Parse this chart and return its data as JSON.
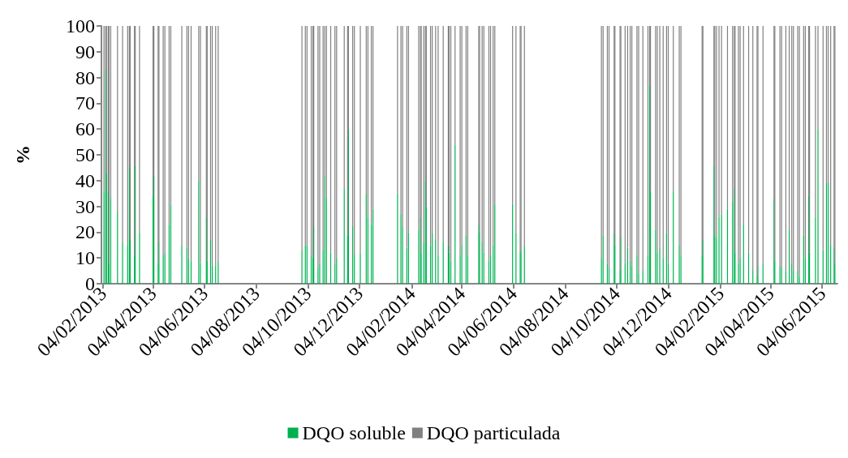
{
  "chart_data": {
    "type": "bar",
    "ylabel": "%",
    "stacked": true,
    "legend": "bottom",
    "grid": false,
    "xlim": [
      "2013-02-02",
      "2015-06-22"
    ],
    "ylim": [
      0,
      100
    ],
    "yticks": [
      0,
      10,
      20,
      30,
      40,
      50,
      60,
      70,
      80,
      90,
      100
    ],
    "xticks": [
      {
        "value": "2013-02-04",
        "label": "04/02/2013"
      },
      {
        "value": "2013-04-04",
        "label": "04/04/2013"
      },
      {
        "value": "2013-06-04",
        "label": "04/06/2013"
      },
      {
        "value": "2013-08-04",
        "label": "04/08/2013"
      },
      {
        "value": "2013-10-04",
        "label": "04/10/2013"
      },
      {
        "value": "2013-12-04",
        "label": "04/12/2013"
      },
      {
        "value": "2014-02-04",
        "label": "04/02/2014"
      },
      {
        "value": "2014-04-04",
        "label": "04/04/2014"
      },
      {
        "value": "2014-06-04",
        "label": "04/06/2014"
      },
      {
        "value": "2014-08-04",
        "label": "04/08/2014"
      },
      {
        "value": "2014-10-04",
        "label": "04/10/2014"
      },
      {
        "value": "2014-12-04",
        "label": "04/12/2014"
      },
      {
        "value": "2015-02-04",
        "label": "04/02/2015"
      },
      {
        "value": "2015-04-04",
        "label": "04/04/2015"
      },
      {
        "value": "2015-06-04",
        "label": "04/06/2015"
      }
    ],
    "x": [
      "2013-02-05",
      "2013-02-07",
      "2013-02-08",
      "2013-02-10",
      "2013-02-11",
      "2013-02-13",
      "2013-02-21",
      "2013-02-27",
      "2013-03-05",
      "2013-03-07",
      "2013-03-08",
      "2013-03-13",
      "2013-03-14",
      "2013-03-19",
      "2013-04-04",
      "2013-04-05",
      "2013-04-10",
      "2013-04-11",
      "2013-04-16",
      "2013-04-18",
      "2013-04-23",
      "2013-04-25",
      "2013-05-08",
      "2013-05-14",
      "2013-05-16",
      "2013-05-19",
      "2013-05-28",
      "2013-05-30",
      "2013-06-06",
      "2013-06-07",
      "2013-06-11",
      "2013-06-13",
      "2013-06-17",
      "2013-06-20",
      "2013-09-27",
      "2013-10-01",
      "2013-10-03",
      "2013-10-08",
      "2013-10-10",
      "2013-10-11",
      "2013-10-16",
      "2013-10-18",
      "2013-10-22",
      "2013-10-24",
      "2013-10-26",
      "2013-10-31",
      "2013-11-05",
      "2013-11-07",
      "2013-11-16",
      "2013-11-20",
      "2013-11-21",
      "2013-11-26",
      "2013-11-28",
      "2013-12-05",
      "2013-12-12",
      "2013-12-14",
      "2013-12-18",
      "2013-12-20",
      "2014-01-18",
      "2014-01-22",
      "2014-01-24",
      "2014-01-29",
      "2014-01-31",
      "2014-02-12",
      "2014-02-14",
      "2014-02-15",
      "2014-02-18",
      "2014-02-20",
      "2014-02-21",
      "2014-02-26",
      "2014-02-28",
      "2014-03-04",
      "2014-03-07",
      "2014-03-13",
      "2014-03-19",
      "2014-03-20",
      "2014-03-22",
      "2014-03-27",
      "2014-04-02",
      "2014-04-04",
      "2014-04-09",
      "2014-04-11",
      "2014-04-24",
      "2014-04-25",
      "2014-04-28",
      "2014-04-30",
      "2014-05-06",
      "2014-05-08",
      "2014-05-11",
      "2014-05-13",
      "2014-06-03",
      "2014-06-07",
      "2014-06-12",
      "2014-06-13",
      "2014-06-17",
      "2014-09-16",
      "2014-09-18",
      "2014-09-23",
      "2014-09-25",
      "2014-10-01",
      "2014-10-02",
      "2014-10-08",
      "2014-10-09",
      "2014-10-14",
      "2014-10-17",
      "2014-10-20",
      "2014-10-22",
      "2014-10-28",
      "2014-10-30",
      "2014-11-04",
      "2014-11-10",
      "2014-11-12",
      "2014-11-13",
      "2014-11-19",
      "2014-11-21",
      "2014-11-24",
      "2014-11-28",
      "2014-12-02",
      "2014-12-04",
      "2014-12-10",
      "2014-12-17",
      "2014-12-19",
      "2015-01-13",
      "2015-01-14",
      "2015-01-27",
      "2015-01-28",
      "2015-01-30",
      "2015-02-02",
      "2015-02-05",
      "2015-02-12",
      "2015-02-18",
      "2015-02-20",
      "2015-02-21",
      "2015-02-25",
      "2015-02-27",
      "2015-03-03",
      "2015-03-09",
      "2015-03-14",
      "2015-03-19",
      "2015-03-20",
      "2015-03-26",
      "2015-04-08",
      "2015-04-09",
      "2015-04-15",
      "2015-04-17",
      "2015-04-22",
      "2015-04-26",
      "2015-04-29",
      "2015-05-01",
      "2015-05-06",
      "2015-05-08",
      "2015-05-13",
      "2015-05-15",
      "2015-05-19",
      "2015-05-20",
      "2015-05-27",
      "2015-05-30",
      "2015-06-05",
      "2015-06-09",
      "2015-06-11",
      "2015-06-14",
      "2015-06-18",
      "2015-06-19"
    ],
    "series": [
      {
        "name": "DQO soluble",
        "color": "#00b050",
        "values": [
          36,
          83,
          43,
          36,
          8,
          33,
          28,
          16,
          15,
          45,
          17,
          11,
          46,
          20,
          34,
          42,
          8,
          16,
          11,
          12,
          23,
          31,
          15,
          14,
          10,
          9,
          40,
          8,
          26,
          9,
          17,
          7,
          7,
          9,
          13,
          15,
          15,
          11,
          10,
          22,
          6,
          8,
          13,
          42,
          33,
          12,
          8,
          10,
          37,
          19,
          60,
          22,
          11,
          12,
          35,
          26,
          23,
          29,
          35,
          27,
          22,
          14,
          20,
          21,
          26,
          12,
          16,
          40,
          30,
          15,
          20,
          17,
          11,
          16,
          15,
          12,
          9,
          54,
          11,
          15,
          19,
          11,
          23,
          20,
          16,
          12,
          9,
          11,
          15,
          31,
          31,
          20,
          12,
          13,
          15,
          10,
          19,
          8,
          6,
          20,
          15,
          5,
          18,
          8,
          14,
          9,
          7,
          11,
          4,
          5,
          11,
          77,
          36,
          21,
          12,
          14,
          10,
          20,
          8,
          36,
          15,
          11,
          11,
          17,
          46,
          19,
          18,
          26,
          27,
          29,
          32,
          37,
          12,
          8,
          10,
          23,
          12,
          5,
          3,
          7,
          8,
          33,
          9,
          7,
          6,
          5,
          21,
          8,
          5,
          5,
          3,
          19,
          10,
          34,
          12,
          26,
          60,
          13,
          39,
          39,
          15,
          14,
          8
        ]
      },
      {
        "name": "DQO particulada",
        "color": "#808080",
        "values": [
          64,
          17,
          57,
          64,
          92,
          67,
          72,
          84,
          85,
          55,
          83,
          89,
          54,
          80,
          66,
          58,
          92,
          84,
          89,
          88,
          77,
          69,
          85,
          86,
          90,
          91,
          60,
          92,
          74,
          91,
          83,
          93,
          93,
          91,
          87,
          85,
          85,
          89,
          90,
          78,
          94,
          92,
          87,
          58,
          67,
          88,
          92,
          90,
          63,
          81,
          40,
          78,
          89,
          88,
          65,
          74,
          77,
          71,
          65,
          73,
          78,
          86,
          80,
          79,
          74,
          88,
          84,
          60,
          70,
          85,
          80,
          83,
          89,
          84,
          85,
          88,
          91,
          46,
          89,
          85,
          81,
          89,
          77,
          80,
          84,
          88,
          91,
          89,
          85,
          69,
          69,
          80,
          88,
          87,
          85,
          90,
          81,
          92,
          94,
          80,
          85,
          95,
          82,
          92,
          86,
          91,
          93,
          89,
          96,
          95,
          89,
          23,
          64,
          79,
          88,
          86,
          90,
          80,
          92,
          64,
          85,
          89,
          89,
          83,
          54,
          81,
          82,
          74,
          73,
          71,
          68,
          63,
          88,
          92,
          90,
          77,
          88,
          95,
          97,
          93,
          92,
          67,
          91,
          93,
          94,
          95,
          79,
          92,
          95,
          95,
          97,
          81,
          90,
          66,
          88,
          74,
          40,
          87,
          61,
          61,
          85,
          86,
          92
        ]
      }
    ]
  }
}
